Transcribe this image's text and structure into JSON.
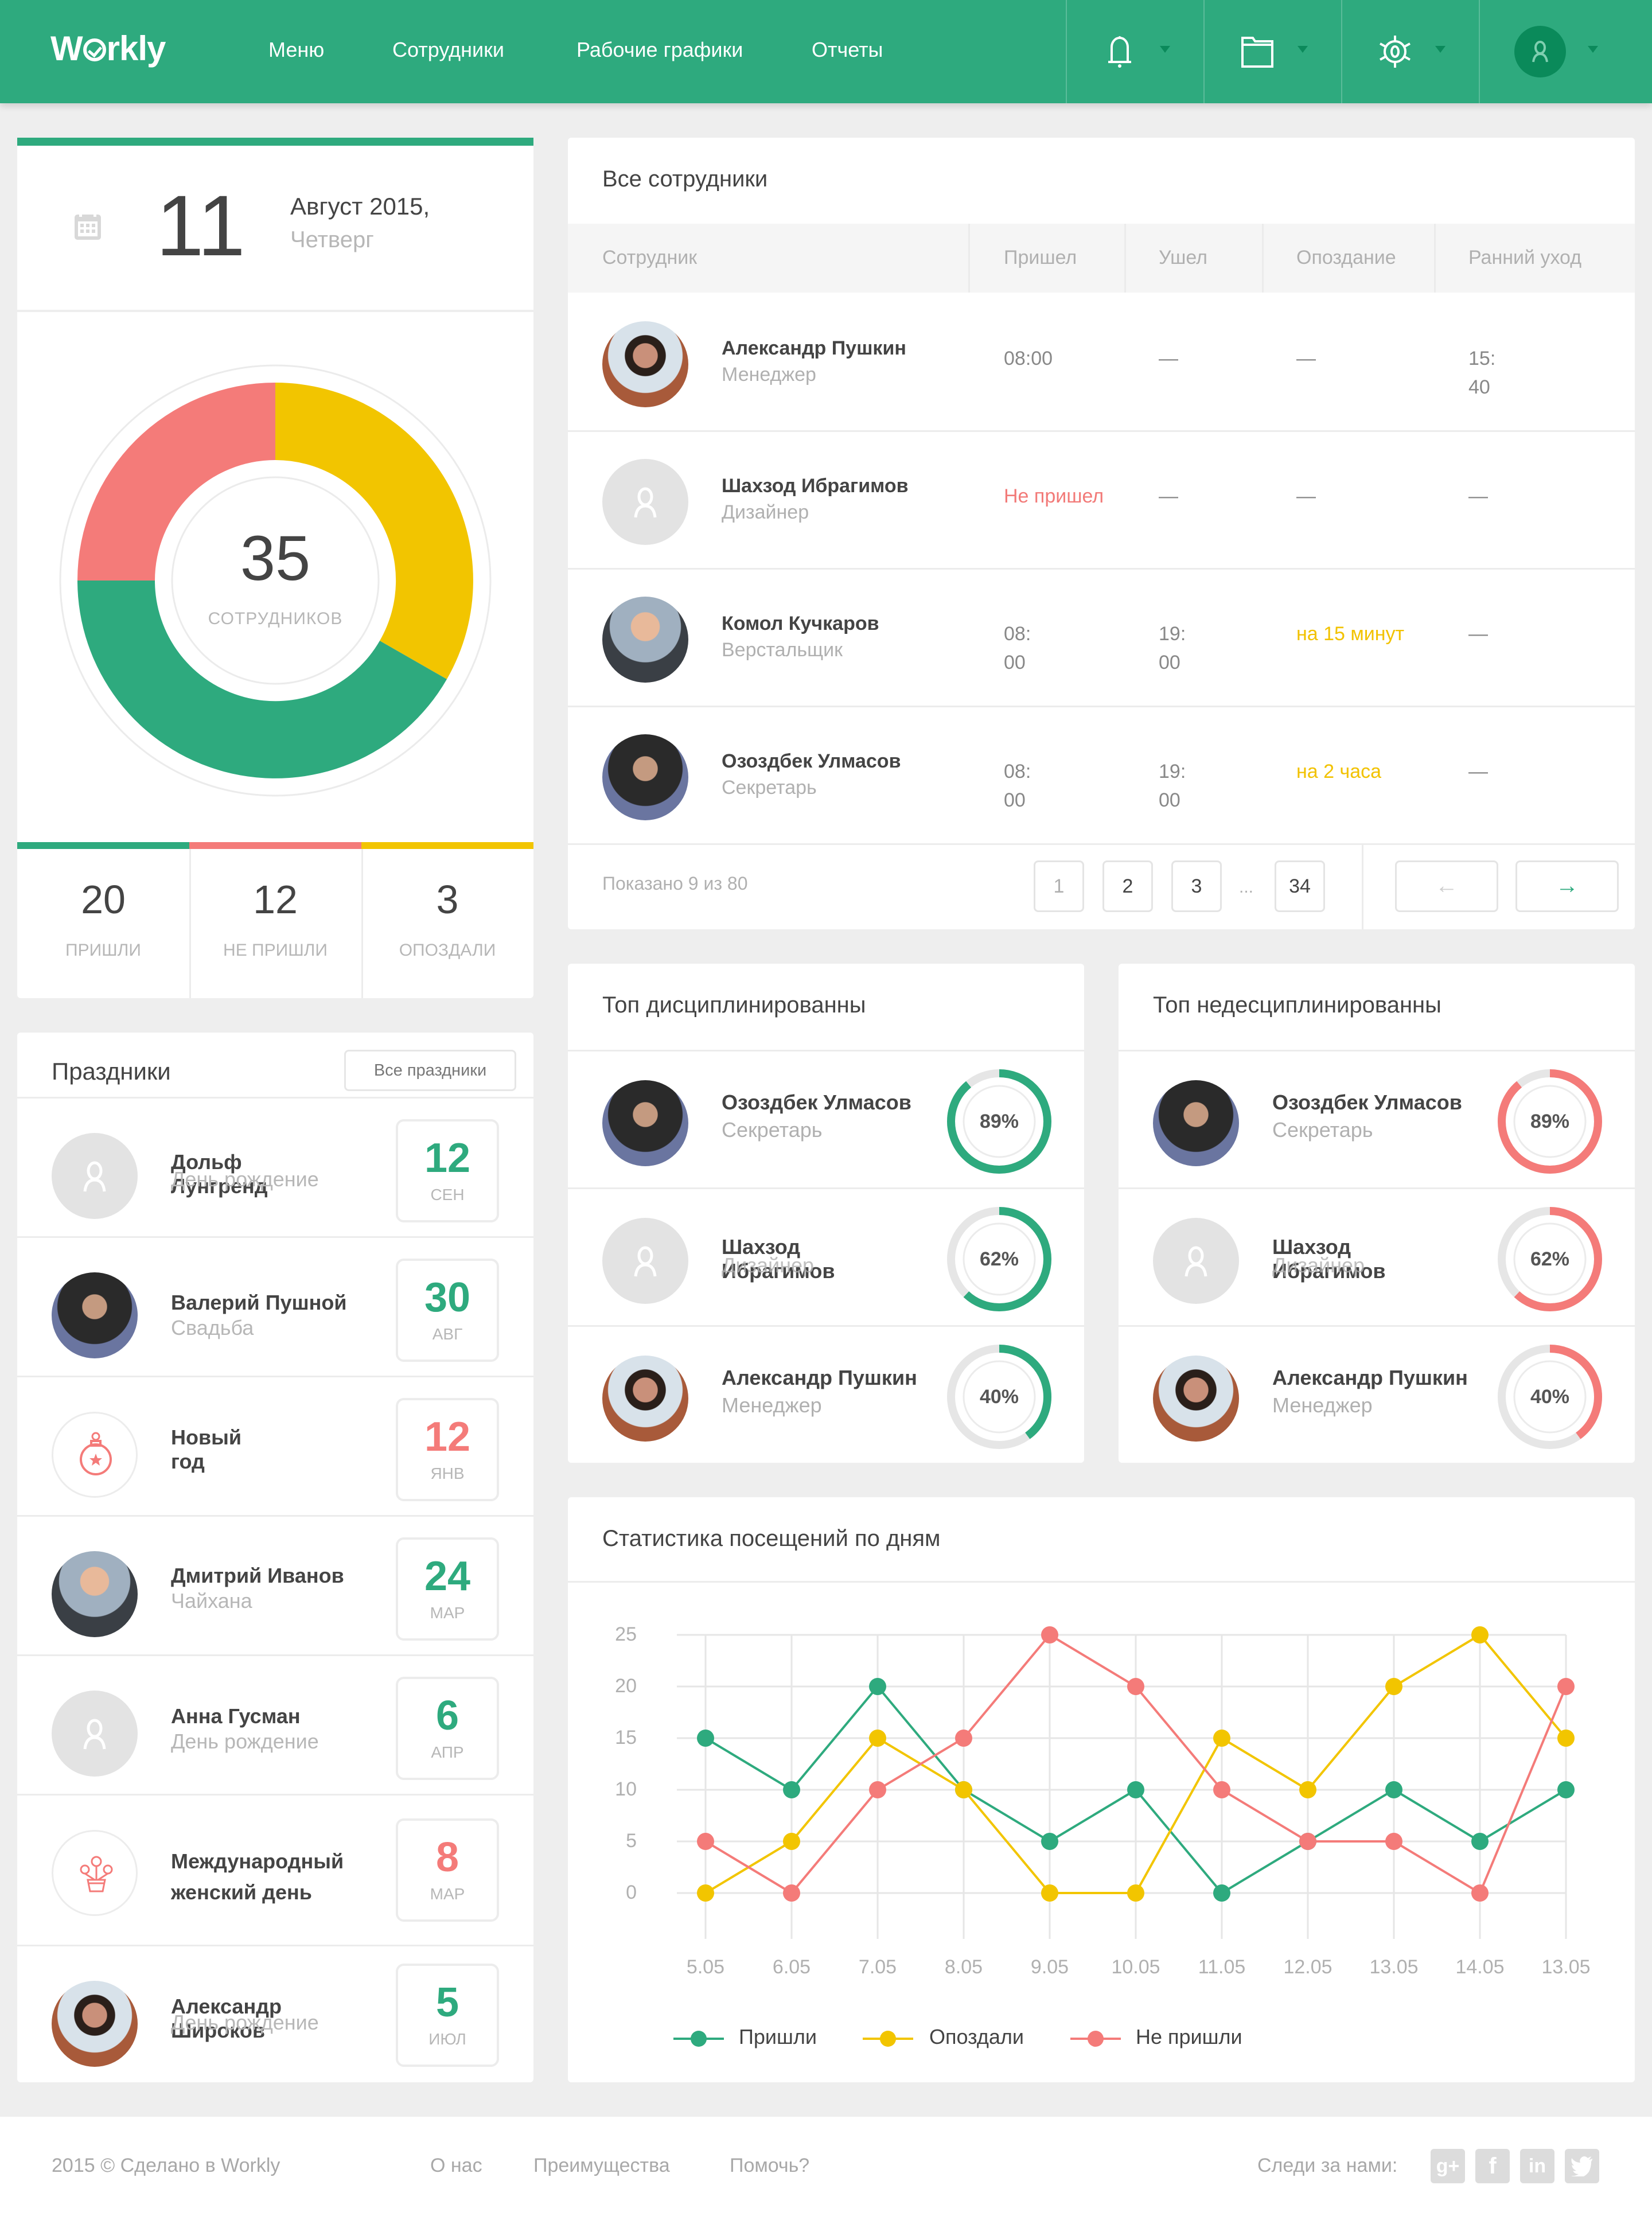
{
  "header": {
    "logo": "Workly",
    "nav": [
      {
        "label": "Меню"
      },
      {
        "label": "Сотрудники"
      },
      {
        "label": "Рабочие графики"
      },
      {
        "label": "Отчеты"
      }
    ],
    "icons": [
      "bell-icon",
      "folder-icon",
      "gear-icon",
      "user-avatar"
    ]
  },
  "date_card": {
    "day": "11",
    "month_year": "Август 2015,",
    "weekday": "Четверг"
  },
  "summary": {
    "total": "35",
    "total_label": "СОТРУДНИКОВ",
    "stats": [
      {
        "value": "20",
        "label": "ПРИШЛИ",
        "color": "#2eaa7e"
      },
      {
        "value": "12",
        "label": "НЕ ПРИШЛИ",
        "color": "#f47b79"
      },
      {
        "value": "3",
        "label": "ОПОЗДАЛИ",
        "color": "#f2c500"
      }
    ]
  },
  "holidays": {
    "title": "Праздники",
    "all_button": "Все праздники",
    "items": [
      {
        "name": "Дольф Лунгренд",
        "sub": "День рождение",
        "day": "12",
        "month": "СЕН",
        "color": "#2eaa7e",
        "avatar": "placeholder"
      },
      {
        "name": "Валерий Пушной",
        "sub": "Свадьба",
        "day": "30",
        "month": "АВГ",
        "color": "#2eaa7e",
        "avatar": "photo-dark"
      },
      {
        "name": "Новый год",
        "sub": "",
        "day": "12",
        "month": "ЯНВ",
        "color": "#f47b79",
        "avatar": "ornament-icon"
      },
      {
        "name": "Дмитрий Иванов",
        "sub": "Чайхана",
        "day": "24",
        "month": "МАР",
        "color": "#2eaa7e",
        "avatar": "photo-glasses"
      },
      {
        "name": "Анна Гусман",
        "sub": "День рождение",
        "day": "6",
        "month": "АПР",
        "color": "#2eaa7e",
        "avatar": "placeholder"
      },
      {
        "name": "Международный женский день",
        "sub": "",
        "day": "8",
        "month": "МАР",
        "color": "#f47b79",
        "avatar": "flower-icon"
      },
      {
        "name": "Александр Широков",
        "sub": "День рождение",
        "day": "5",
        "month": "ИЮЛ",
        "color": "#2eaa7e",
        "avatar": "photo-brick"
      }
    ]
  },
  "employees": {
    "title": "Все сотрудники",
    "columns": [
      "Сотрудник",
      "Пришел",
      "Ушел",
      "Опоздание",
      "Ранний уход"
    ],
    "rows": [
      {
        "name": "Александр Пушкин",
        "role": "Менеджер",
        "arrived": "08:00",
        "left": "—",
        "late": "—",
        "early": "15:40",
        "avatar": "photo-brick"
      },
      {
        "name": "Шахзод Ибрагимов",
        "role": "Дизайнер",
        "arrived": "Не пришел",
        "left": "—",
        "late": "—",
        "early": "—",
        "avatar": "placeholder"
      },
      {
        "name": "Комол Кучкаров",
        "role": "Верстальщик",
        "arrived": "08:00",
        "left": "19:00",
        "late": "на 15 минут",
        "early": "—",
        "avatar": "photo-glasses"
      },
      {
        "name": "Озоздбек Улмасов",
        "role": "Секретарь",
        "arrived": "08:00",
        "left": "19:00",
        "late": "на 2 часа",
        "early": "—",
        "avatar": "photo-dark"
      }
    ],
    "pager": {
      "info": "Показано 9 из 80",
      "pages": [
        "1",
        "2",
        "3",
        "34"
      ],
      "ellipsis": "...",
      "prev": "←",
      "next": "→"
    }
  },
  "top_disciplined": {
    "title": "Топ дисциплинированны",
    "color": "#2eaa7e",
    "items": [
      {
        "name": "Озоздбек Улмасов",
        "role": "Секретарь",
        "percent": 89,
        "label": "89%",
        "avatar": "photo-dark"
      },
      {
        "name": "Шахзод Ибрагимов",
        "role": "Дизайнер",
        "percent": 62,
        "label": "62%",
        "avatar": "placeholder"
      },
      {
        "name": "Александр Пушкин",
        "role": "Менеджер",
        "percent": 40,
        "label": "40%",
        "avatar": "photo-brick"
      }
    ]
  },
  "top_undisciplined": {
    "title": "Топ недесциплинированны",
    "color": "#f47b79",
    "items": [
      {
        "name": "Озоздбек Улмасов",
        "role": "Секретарь",
        "percent": 89,
        "label": "89%",
        "avatar": "photo-dark"
      },
      {
        "name": "Шахзод Ибрагимов",
        "role": "Дизайнер",
        "percent": 62,
        "label": "62%",
        "avatar": "placeholder"
      },
      {
        "name": "Александр Пушкин",
        "role": "Менеджер",
        "percent": 40,
        "label": "40%",
        "avatar": "photo-brick"
      }
    ]
  },
  "chart_data": [
    {
      "type": "pie",
      "title": "35 СОТРУДНИКОВ",
      "categories": [
        "Пришли",
        "Не пришли",
        "Опоздали"
      ],
      "values": [
        20,
        12,
        3
      ],
      "colors": [
        "#2eaa7e",
        "#f47b79",
        "#f2c500"
      ]
    },
    {
      "type": "line",
      "title": "Статистика посещений по дням",
      "xlabel": "",
      "ylabel": "",
      "categories": [
        "5.05",
        "6.05",
        "7.05",
        "8.05",
        "9.05",
        "10.05",
        "11.05",
        "12.05",
        "13.05",
        "14.05",
        "13.05"
      ],
      "ylim": [
        0,
        25
      ],
      "yticks": [
        0,
        5,
        10,
        15,
        20,
        25
      ],
      "grid": true,
      "legend_position": "bottom-left",
      "series": [
        {
          "name": "Пришли",
          "color": "#2eaa7e",
          "values": [
            15,
            10,
            20,
            10,
            5,
            10,
            0,
            5,
            10,
            5,
            10
          ]
        },
        {
          "name": "Опоздали",
          "color": "#f2c500",
          "values": [
            0,
            5,
            15,
            10,
            0,
            0,
            15,
            10,
            20,
            25,
            15
          ]
        },
        {
          "name": "Не пришли",
          "color": "#f47b79",
          "values": [
            5,
            0,
            10,
            15,
            25,
            20,
            10,
            5,
            5,
            0,
            20
          ]
        }
      ]
    }
  ],
  "footer": {
    "copyright": "2015 © Сделано в Workly",
    "links": [
      "О нас",
      "Преимущества",
      "Помочь?"
    ],
    "follow": "Следи за нами:",
    "social": [
      {
        "name": "google-plus",
        "glyph": "g+"
      },
      {
        "name": "facebook",
        "glyph": "f"
      },
      {
        "name": "linkedin",
        "glyph": "in"
      },
      {
        "name": "twitter",
        "glyph": "t"
      }
    ]
  }
}
